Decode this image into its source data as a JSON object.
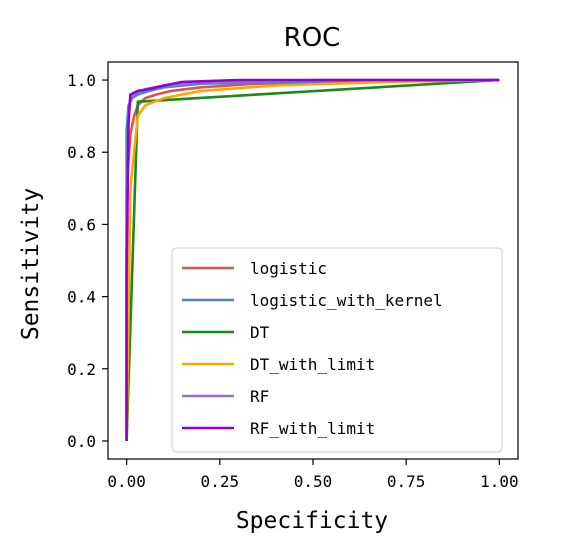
{
  "chart_data": {
    "type": "line",
    "title": "ROC",
    "xlabel": "Specificity",
    "ylabel": "Sensitivity",
    "xlim": [
      -0.05,
      1.05
    ],
    "ylim": [
      -0.05,
      1.05
    ],
    "x_ticks": [
      {
        "value": 0.0,
        "label": "0.00"
      },
      {
        "value": 0.25,
        "label": "0.25"
      },
      {
        "value": 0.5,
        "label": "0.50"
      },
      {
        "value": 0.75,
        "label": "0.75"
      },
      {
        "value": 1.0,
        "label": "1.00"
      }
    ],
    "y_ticks": [
      {
        "value": 0.0,
        "label": "0.0"
      },
      {
        "value": 0.2,
        "label": "0.2"
      },
      {
        "value": 0.4,
        "label": "0.4"
      },
      {
        "value": 0.6,
        "label": "0.6"
      },
      {
        "value": 0.8,
        "label": "0.8"
      },
      {
        "value": 1.0,
        "label": "1.0"
      }
    ],
    "legend_position": "lower-right",
    "grid": false,
    "series": [
      {
        "name": "logistic",
        "color": "#d9534f",
        "points": [
          [
            0,
            0
          ],
          [
            0,
            0.7
          ],
          [
            0.01,
            0.85
          ],
          [
            0.02,
            0.9
          ],
          [
            0.03,
            0.93
          ],
          [
            0.05,
            0.95
          ],
          [
            0.08,
            0.96
          ],
          [
            0.12,
            0.97
          ],
          [
            0.2,
            0.98
          ],
          [
            0.35,
            0.99
          ],
          [
            0.6,
            0.995
          ],
          [
            1.0,
            1.0
          ]
        ]
      },
      {
        "name": "logistic_with_kernel",
        "color": "#4a86c8",
        "points": [
          [
            0,
            0
          ],
          [
            0,
            0.86
          ],
          [
            0.005,
            0.93
          ],
          [
            0.015,
            0.95
          ],
          [
            0.03,
            0.96
          ],
          [
            0.06,
            0.97
          ],
          [
            0.1,
            0.98
          ],
          [
            0.2,
            0.99
          ],
          [
            0.4,
            0.995
          ],
          [
            1.0,
            1.0
          ]
        ]
      },
      {
        "name": "DT",
        "color": "#1a8a1a",
        "points": [
          [
            0,
            0
          ],
          [
            0.03,
            0.94
          ],
          [
            1.0,
            1.0
          ]
        ]
      },
      {
        "name": "DT_with_limit",
        "color": "#ffa500",
        "points": [
          [
            0,
            0
          ],
          [
            0.01,
            0.7
          ],
          [
            0.03,
            0.9
          ],
          [
            0.05,
            0.93
          ],
          [
            0.1,
            0.95
          ],
          [
            0.2,
            0.97
          ],
          [
            0.4,
            0.985
          ],
          [
            0.7,
            0.995
          ],
          [
            1.0,
            1.0
          ]
        ]
      },
      {
        "name": "RF",
        "color": "#9370db",
        "points": [
          [
            0,
            0
          ],
          [
            0,
            0.5
          ],
          [
            0.005,
            0.9
          ],
          [
            0.01,
            0.955
          ],
          [
            0.03,
            0.965
          ],
          [
            0.05,
            0.975
          ],
          [
            0.1,
            0.985
          ],
          [
            0.2,
            0.995
          ],
          [
            0.5,
            1.0
          ],
          [
            1.0,
            1.0
          ]
        ]
      },
      {
        "name": "RF_with_limit",
        "color": "#9400d3",
        "points": [
          [
            0,
            0
          ],
          [
            0,
            0.47
          ],
          [
            0.005,
            0.88
          ],
          [
            0.01,
            0.96
          ],
          [
            0.03,
            0.97
          ],
          [
            0.06,
            0.975
          ],
          [
            0.1,
            0.985
          ],
          [
            0.15,
            0.995
          ],
          [
            0.3,
            1.0
          ],
          [
            1.0,
            1.0
          ]
        ]
      }
    ]
  }
}
